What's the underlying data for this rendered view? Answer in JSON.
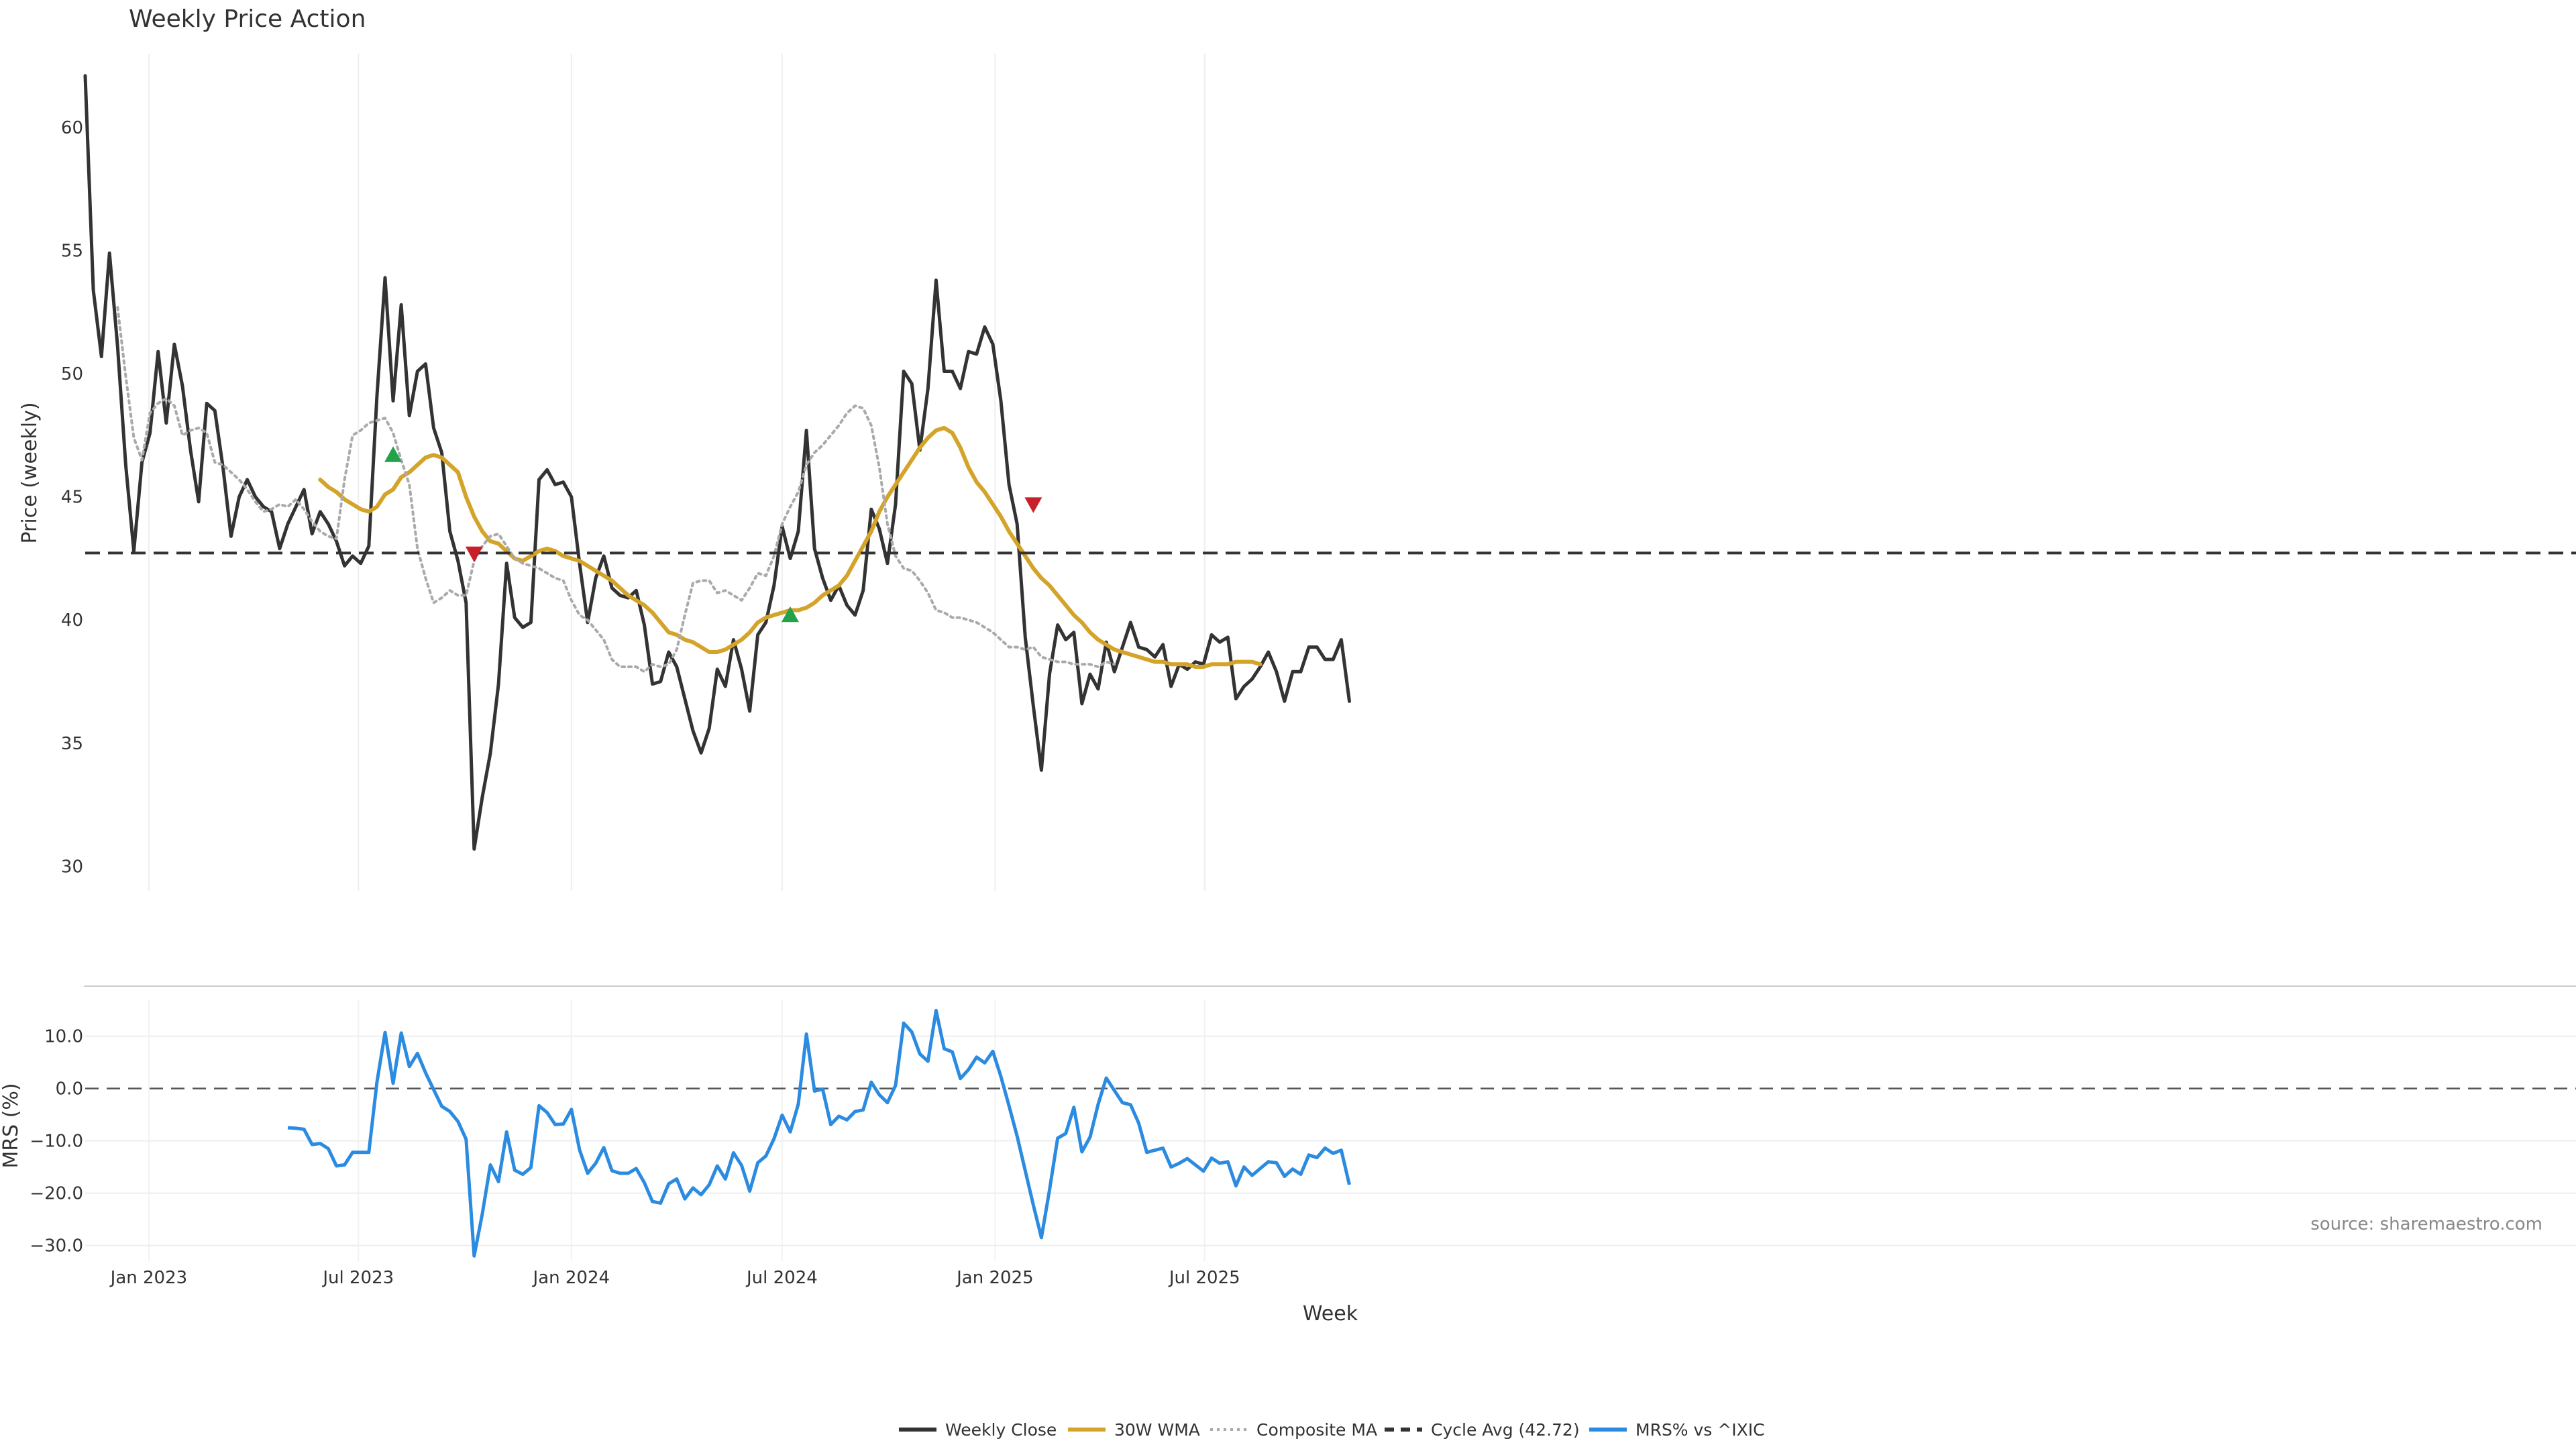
{
  "chart_data": {
    "type": "line",
    "title": "Weekly Price Action",
    "source": "source: sharemaestro.com",
    "x_axis": {
      "label": "Week",
      "ticks": [
        "Jan 2023",
        "Jul 2023",
        "Jan 2024",
        "Jul 2024",
        "Jan 2025",
        "Jul 2025"
      ],
      "start": "2022-11-07"
    },
    "price_panel": {
      "ylabel": "Price (weekly)",
      "ylim": [
        29,
        63
      ],
      "yticks": [
        30,
        35,
        40,
        45,
        50,
        55,
        60
      ],
      "cycle_avg": 42.72,
      "series": [
        {
          "name": "Weekly Close",
          "key": "close",
          "color": "#333333",
          "style": "solid",
          "values": [
            62.1,
            53.4,
            50.7,
            54.9,
            51.1,
            46.3,
            42.8,
            46.4,
            47.6,
            50.9,
            48.0,
            51.2,
            49.5,
            46.9,
            44.8,
            48.8,
            48.5,
            46.2,
            43.4,
            45.0,
            45.7,
            45.0,
            44.6,
            44.4,
            42.9,
            43.9,
            44.6,
            45.3,
            43.5,
            44.4,
            43.9,
            43.2,
            42.2,
            42.6,
            42.3,
            43.0,
            49.1,
            53.9,
            48.9,
            52.8,
            48.3,
            50.1,
            50.4,
            47.8,
            46.8,
            43.6,
            42.4,
            40.7,
            30.7,
            32.8,
            34.6,
            37.4,
            42.3,
            40.1,
            39.7,
            39.9,
            45.7,
            46.1,
            45.5,
            45.6,
            45.0,
            42.3,
            39.9,
            41.7,
            42.6,
            41.3,
            41.0,
            40.9,
            41.2,
            39.8,
            37.4,
            37.5,
            38.7,
            38.1,
            36.8,
            35.5,
            34.6,
            35.6,
            38.0,
            37.3,
            39.2,
            38.0,
            36.3,
            39.4,
            39.9,
            41.4,
            43.8,
            42.5,
            43.6,
            47.7,
            42.9,
            41.7,
            40.8,
            41.4,
            40.6,
            40.2,
            41.2,
            44.5,
            43.7,
            42.3,
            44.7,
            50.1,
            49.6,
            46.9,
            49.4,
            53.8,
            50.1,
            50.1,
            49.4,
            50.9,
            50.8,
            51.9,
            51.2,
            48.9,
            45.5,
            43.9,
            39.3,
            36.5,
            33.9,
            37.8,
            39.8,
            39.2,
            39.5,
            36.6,
            37.8,
            37.2,
            39.1,
            37.9,
            38.9,
            39.9,
            38.9,
            38.8,
            38.5,
            39.0,
            37.3,
            38.2,
            38.0,
            38.3,
            38.2,
            39.4,
            39.1,
            39.3,
            36.8,
            37.3,
            37.6,
            38.1,
            38.7,
            37.9,
            36.7,
            37.9,
            37.9,
            38.9,
            38.9,
            38.4,
            38.4,
            39.2,
            36.7
          ]
        },
        {
          "name": "30W WMA",
          "key": "wma",
          "color": "#d4a32a",
          "style": "solid",
          "start_index": 29,
          "values": [
            45.7,
            45.4,
            45.2,
            44.9,
            44.7,
            44.5,
            44.4,
            44.6,
            45.1,
            45.3,
            45.8,
            46.0,
            46.3,
            46.6,
            46.7,
            46.6,
            46.3,
            46.0,
            45.0,
            44.2,
            43.6,
            43.2,
            43.1,
            42.8,
            42.5,
            42.4,
            42.6,
            42.8,
            42.9,
            42.8,
            42.6,
            42.5,
            42.4,
            42.2,
            42.0,
            41.8,
            41.6,
            41.3,
            41.0,
            40.8,
            40.6,
            40.3,
            39.9,
            39.5,
            39.4,
            39.2,
            39.1,
            38.9,
            38.7,
            38.7,
            38.8,
            39.0,
            39.2,
            39.5,
            39.9,
            40.1,
            40.2,
            40.3,
            40.4,
            40.4,
            40.5,
            40.7,
            41.0,
            41.2,
            41.4,
            41.8,
            42.4,
            43.0,
            43.6,
            44.4,
            45.0,
            45.5,
            46.0,
            46.5,
            47.0,
            47.4,
            47.7,
            47.8,
            47.6,
            47.0,
            46.2,
            45.6,
            45.2,
            44.7,
            44.2,
            43.6,
            43.1,
            42.6,
            42.1,
            41.7,
            41.4,
            41.0,
            40.6,
            40.2,
            39.9,
            39.5,
            39.2,
            39.0,
            38.8,
            38.7,
            38.6,
            38.5,
            38.4,
            38.3,
            38.3,
            38.2,
            38.2,
            38.2,
            38.1,
            38.1,
            38.2,
            38.2,
            38.2,
            38.3,
            38.3,
            38.3,
            38.2
          ]
        },
        {
          "name": "Composite MA",
          "key": "composite",
          "color": "#aaaaaa",
          "style": "dotted",
          "start_index": 4,
          "values": [
            52.7,
            49.9,
            47.4,
            46.5,
            48.4,
            48.8,
            49.0,
            48.7,
            47.5,
            47.7,
            47.8,
            47.6,
            46.4,
            46.3,
            46.0,
            45.7,
            45.3,
            44.8,
            44.4,
            44.5,
            44.7,
            44.6,
            44.9,
            44.5,
            44.0,
            43.6,
            43.4,
            43.3,
            45.7,
            47.5,
            47.7,
            48.0,
            48.1,
            48.2,
            47.6,
            46.5,
            45.5,
            42.9,
            41.7,
            40.7,
            40.9,
            41.2,
            41.0,
            41.0,
            42.4,
            43.0,
            43.4,
            43.5,
            43.0,
            42.5,
            42.3,
            42.2,
            42.1,
            41.9,
            41.7,
            41.6,
            40.8,
            40.2,
            40.0,
            39.6,
            39.2,
            38.4,
            38.1,
            38.1,
            38.1,
            37.9,
            38.2,
            38.1,
            38.2,
            38.8,
            40.2,
            41.5,
            41.6,
            41.6,
            41.1,
            41.2,
            41.0,
            40.8,
            41.3,
            41.9,
            41.8,
            42.6,
            43.9,
            44.6,
            45.2,
            46.3,
            46.8,
            47.1,
            47.5,
            47.9,
            48.4,
            48.7,
            48.6,
            47.9,
            46.2,
            43.9,
            42.6,
            42.1,
            42.0,
            41.6,
            41.1,
            40.4,
            40.3,
            40.1,
            40.1,
            40.0,
            39.9,
            39.7,
            39.5,
            39.2,
            38.9,
            38.9,
            38.8,
            38.9,
            38.5,
            38.4,
            38.3,
            38.3,
            38.2,
            38.2,
            38.2,
            38.1,
            38.3,
            38.2
          ]
        },
        {
          "name": "Cycle Avg (42.72)",
          "key": "cycle",
          "color": "#333333",
          "style": "dashed"
        }
      ],
      "markers": [
        {
          "type": "buy",
          "index": 38,
          "value": 46.7,
          "color": "#22a34a"
        },
        {
          "type": "sell",
          "index": 48,
          "value": 42.7,
          "color": "#c8202a"
        },
        {
          "type": "buy",
          "index": 87,
          "value": 40.2,
          "color": "#22a34a"
        },
        {
          "type": "sell",
          "index": 117,
          "value": 44.7,
          "color": "#c8202a"
        }
      ]
    },
    "mrs_panel": {
      "ylabel": "MRS (%)",
      "ylim": [
        -33,
        17
      ],
      "yticks": [
        -30.0,
        -20.0,
        -10.0,
        0.0,
        10.0
      ],
      "ytick_labels": [
        "−30.0",
        "−20.0",
        "−10.0",
        "0.0",
        "10.0"
      ],
      "series": [
        {
          "name": "MRS% vs ^IXIC",
          "key": "mrs",
          "color": "#2b8be0",
          "style": "solid",
          "start_index": 25,
          "values": [
            -7.5,
            -7.6,
            -7.8,
            -10.7,
            -10.5,
            -11.5,
            -14.8,
            -14.6,
            -12.2,
            -12.2,
            -12.2,
            1.2,
            10.7,
            1.0,
            10.6,
            4.2,
            6.7,
            3.0,
            -0.2,
            -3.4,
            -4.4,
            -6.3,
            -9.7,
            -32.0,
            -24.0,
            -14.6,
            -17.8,
            -8.3,
            -15.6,
            -16.4,
            -15.1,
            -3.3,
            -4.6,
            -6.9,
            -6.8,
            -4.0,
            -11.7,
            -16.2,
            -14.3,
            -11.3,
            -15.7,
            -16.2,
            -16.2,
            -15.3,
            -18.0,
            -21.6,
            -21.9,
            -18.2,
            -17.3,
            -21.1,
            -19.0,
            -20.3,
            -18.4,
            -14.8,
            -17.3,
            -12.3,
            -14.7,
            -19.6,
            -14.2,
            -12.9,
            -9.6,
            -5.1,
            -8.3,
            -3.0,
            10.4,
            -0.5,
            -0.1,
            -6.9,
            -5.3,
            -6.0,
            -4.4,
            -4.1,
            1.2,
            -1.2,
            -2.7,
            0.6,
            12.5,
            10.8,
            6.6,
            5.2,
            14.9,
            7.6,
            7.0,
            1.9,
            3.6,
            6.0,
            4.9,
            7.1,
            2.3,
            -3.3,
            -9.1,
            -15.7,
            -22.3,
            -28.5,
            -19.4,
            -9.5,
            -8.6,
            -3.6,
            -12.1,
            -9.3,
            -3.0,
            2.0,
            -0.4,
            -2.7,
            -3.1,
            -6.6,
            -12.2,
            -11.8,
            -11.4,
            -15.0,
            -14.3,
            -13.4,
            -14.6,
            -15.8,
            -13.3,
            -14.3,
            -14.0,
            -18.6,
            -15.0,
            -16.6,
            -15.3,
            -14.0,
            -14.2,
            -16.8,
            -15.4,
            -16.4,
            -12.7,
            -13.2,
            -11.4,
            -12.4,
            -11.8,
            -18.4
          ]
        }
      ]
    },
    "legend": {
      "placement": "bottom-center",
      "entries": [
        {
          "label": "Weekly Close",
          "color": "#333333",
          "style": "solid"
        },
        {
          "label": "30W WMA",
          "color": "#d4a32a",
          "style": "solid"
        },
        {
          "label": "Composite MA",
          "color": "#aaaaaa",
          "style": "dotted"
        },
        {
          "label": "Cycle Avg (42.72)",
          "color": "#333333",
          "style": "dashed"
        },
        {
          "label": "MRS% vs ^IXIC",
          "color": "#2b8be0",
          "style": "solid"
        }
      ]
    },
    "grid": true
  }
}
